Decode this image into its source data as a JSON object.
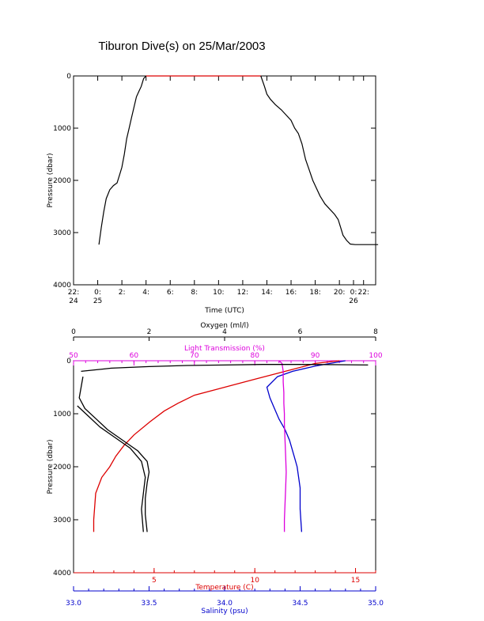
{
  "page": {
    "title": "Tiburon Dive(s) on 25/Mar/2003"
  },
  "colors": {
    "axis": "#000000",
    "temperature": "#dd0000",
    "salinity": "#0000cc",
    "transmission": "#dd00dd",
    "oxygen": "#000000"
  },
  "chart_data": [
    {
      "type": "line",
      "xlabel": "Time (UTC)",
      "ylabel": "Pressure (dbar)",
      "xlim": [
        22,
        47
      ],
      "ylim": [
        4000,
        0
      ],
      "x_ticks": [
        {
          "v": 22,
          "line1": "22:",
          "line2": "24"
        },
        {
          "v": 24,
          "line1": "0:",
          "line2": "25"
        },
        {
          "v": 26,
          "line1": "2:",
          "line2": ""
        },
        {
          "v": 28,
          "line1": "4:",
          "line2": ""
        },
        {
          "v": 30,
          "line1": "6:",
          "line2": ""
        },
        {
          "v": 32,
          "line1": "8:",
          "line2": ""
        },
        {
          "v": 34,
          "line1": "10:",
          "line2": ""
        },
        {
          "v": 36,
          "line1": "12:",
          "line2": ""
        },
        {
          "v": 38,
          "line1": "14:",
          "line2": ""
        },
        {
          "v": 40,
          "line1": "16:",
          "line2": ""
        },
        {
          "v": 42,
          "line1": "18:",
          "line2": ""
        },
        {
          "v": 44,
          "line1": "20:",
          "line2": ""
        },
        {
          "v": 46,
          "line1": "22:",
          "line2": ""
        },
        {
          "v": 48,
          "line1": "0:",
          "line2": "26"
        }
      ],
      "y_ticks": [
        "0",
        "1000",
        "2000",
        "3000",
        "4000"
      ],
      "series": [
        {
          "color": "#000000",
          "points": [
            [
              24.1,
              3230
            ],
            [
              24.3,
              2900
            ],
            [
              24.5,
              2600
            ],
            [
              24.7,
              2350
            ],
            [
              25.0,
              2180
            ],
            [
              25.3,
              2100
            ],
            [
              25.6,
              2050
            ],
            [
              25.8,
              1900
            ],
            [
              26.0,
              1750
            ],
            [
              26.2,
              1500
            ],
            [
              26.4,
              1200
            ],
            [
              26.6,
              1000
            ],
            [
              26.8,
              800
            ],
            [
              27.0,
              600
            ],
            [
              27.2,
              400
            ],
            [
              27.4,
              300
            ],
            [
              27.6,
              200
            ],
            [
              27.8,
              50
            ],
            [
              28.0,
              0
            ]
          ]
        },
        {
          "color": "#dd0000",
          "points": [
            [
              28.0,
              0
            ],
            [
              37.5,
              0
            ]
          ]
        },
        {
          "color": "#000000",
          "points": [
            [
              37.5,
              0
            ],
            [
              37.8,
              200
            ],
            [
              38.0,
              350
            ],
            [
              38.3,
              450
            ],
            [
              38.7,
              550
            ],
            [
              39.2,
              650
            ],
            [
              39.6,
              750
            ],
            [
              40.0,
              850
            ],
            [
              40.3,
              1000
            ],
            [
              40.6,
              1100
            ],
            [
              40.9,
              1300
            ],
            [
              41.2,
              1600
            ],
            [
              41.5,
              1800
            ],
            [
              41.8,
              2000
            ],
            [
              42.1,
              2150
            ],
            [
              42.4,
              2300
            ],
            [
              42.8,
              2450
            ],
            [
              43.2,
              2550
            ],
            [
              43.6,
              2650
            ],
            [
              43.9,
              2750
            ],
            [
              44.1,
              2900
            ],
            [
              44.3,
              3050
            ],
            [
              44.6,
              3150
            ],
            [
              44.9,
              3220
            ],
            [
              45.3,
              3230
            ],
            [
              47.2,
              3230
            ]
          ]
        }
      ]
    },
    {
      "type": "line",
      "ylabel": "Pressure (dbar)",
      "ylim": [
        4000,
        0
      ],
      "y_ticks": [
        "0",
        "1000",
        "2000",
        "3000",
        "4000"
      ],
      "axes": [
        {
          "label": "Oxygen (ml/l)",
          "position": "top",
          "range": [
            0,
            8
          ],
          "ticks": [
            "0",
            "2",
            "4",
            "6",
            "8"
          ],
          "color": "#000000"
        },
        {
          "label": "Light Transmission (%)",
          "position": "top",
          "range": [
            50,
            100
          ],
          "ticks": [
            "50",
            "60",
            "70",
            "80",
            "90",
            "100"
          ],
          "color": "#dd00dd"
        },
        {
          "label": "Temperature (C)",
          "position": "bottom",
          "range": [
            1,
            16
          ],
          "ticks": [
            "5",
            "10",
            "15"
          ],
          "tick_values": [
            5,
            10,
            15
          ],
          "color": "#dd0000"
        },
        {
          "label": "Salinity (psu)",
          "position": "bottom",
          "range": [
            33.0,
            35.0
          ],
          "ticks": [
            "33.0",
            "33.5",
            "34.0",
            "34.5",
            "35.0"
          ],
          "color": "#0000cc"
        }
      ],
      "series": [
        {
          "name": "Temperature (C)",
          "axis": 2,
          "color": "#dd0000",
          "points": [
            [
              14.2,
              0
            ],
            [
              13.0,
              50
            ],
            [
              12.0,
              150
            ],
            [
              11.0,
              250
            ],
            [
              10.0,
              350
            ],
            [
              9.0,
              450
            ],
            [
              8.0,
              550
            ],
            [
              7.0,
              650
            ],
            [
              6.2,
              800
            ],
            [
              5.5,
              950
            ],
            [
              4.8,
              1150
            ],
            [
              4.0,
              1400
            ],
            [
              3.5,
              1600
            ],
            [
              3.1,
              1800
            ],
            [
              2.8,
              2000
            ],
            [
              2.4,
              2200
            ],
            [
              2.1,
              2500
            ],
            [
              2.0,
              3000
            ],
            [
              2.0,
              3230
            ]
          ]
        },
        {
          "name": "Salinity (psu)",
          "axis": 3,
          "color": "#0000cc",
          "points": [
            [
              34.8,
              0
            ],
            [
              34.6,
              100
            ],
            [
              34.45,
              200
            ],
            [
              34.35,
              300
            ],
            [
              34.28,
              500
            ],
            [
              34.3,
              700
            ],
            [
              34.33,
              900
            ],
            [
              34.36,
              1100
            ],
            [
              34.4,
              1300
            ],
            [
              34.43,
              1500
            ],
            [
              34.46,
              1800
            ],
            [
              34.48,
              2000
            ],
            [
              34.5,
              2400
            ],
            [
              34.5,
              2800
            ],
            [
              34.51,
              3230
            ]
          ]
        },
        {
          "name": "Light Transmission (%)",
          "axis": 1,
          "color": "#dd00dd",
          "points": [
            [
              84,
              0
            ],
            [
              84.5,
              50
            ],
            [
              84.7,
              200
            ],
            [
              84.7,
              400
            ],
            [
              84.8,
              600
            ],
            [
              84.8,
              800
            ],
            [
              84.9,
              1000
            ],
            [
              84.9,
              1200
            ],
            [
              85.0,
              1500
            ],
            [
              85.1,
              1800
            ],
            [
              85.2,
              2100
            ],
            [
              85.1,
              2400
            ],
            [
              85.0,
              2700
            ],
            [
              84.9,
              3000
            ],
            [
              84.9,
              3230
            ]
          ]
        },
        {
          "name": "Oxygen (ml/l)",
          "axis": 0,
          "color": "#000000",
          "points": [
            [
              0.25,
              300
            ],
            [
              0.15,
              700
            ],
            [
              0.3,
              900
            ],
            [
              0.6,
              1100
            ],
            [
              0.9,
              1300
            ],
            [
              1.3,
              1500
            ],
            [
              1.7,
              1700
            ],
            [
              1.95,
              1900
            ],
            [
              2.0,
              2100
            ],
            [
              1.95,
              2300
            ],
            [
              1.9,
              2600
            ],
            [
              1.9,
              2900
            ],
            [
              1.95,
              3230
            ]
          ]
        },
        {
          "name": "Oxygen (ml/l)",
          "axis": 0,
          "color": "#000000",
          "points": [
            [
              0.1,
              850
            ],
            [
              0.4,
              1050
            ],
            [
              0.7,
              1250
            ],
            [
              1.1,
              1450
            ],
            [
              1.5,
              1650
            ],
            [
              1.8,
              1900
            ],
            [
              1.9,
              2200
            ],
            [
              1.85,
              2500
            ],
            [
              1.8,
              2800
            ],
            [
              1.85,
              3230
            ]
          ]
        },
        {
          "name": "Oxygen (ml/l)",
          "axis": 0,
          "color": "#000000",
          "points": [
            [
              0.2,
              200
            ],
            [
              1.0,
              140
            ],
            [
              2.0,
              110
            ],
            [
              3.0,
              90
            ],
            [
              4.0,
              80
            ],
            [
              5.0,
              70
            ],
            [
              6.0,
              70
            ],
            [
              7.0,
              75
            ],
            [
              7.8,
              80
            ]
          ]
        }
      ]
    }
  ]
}
